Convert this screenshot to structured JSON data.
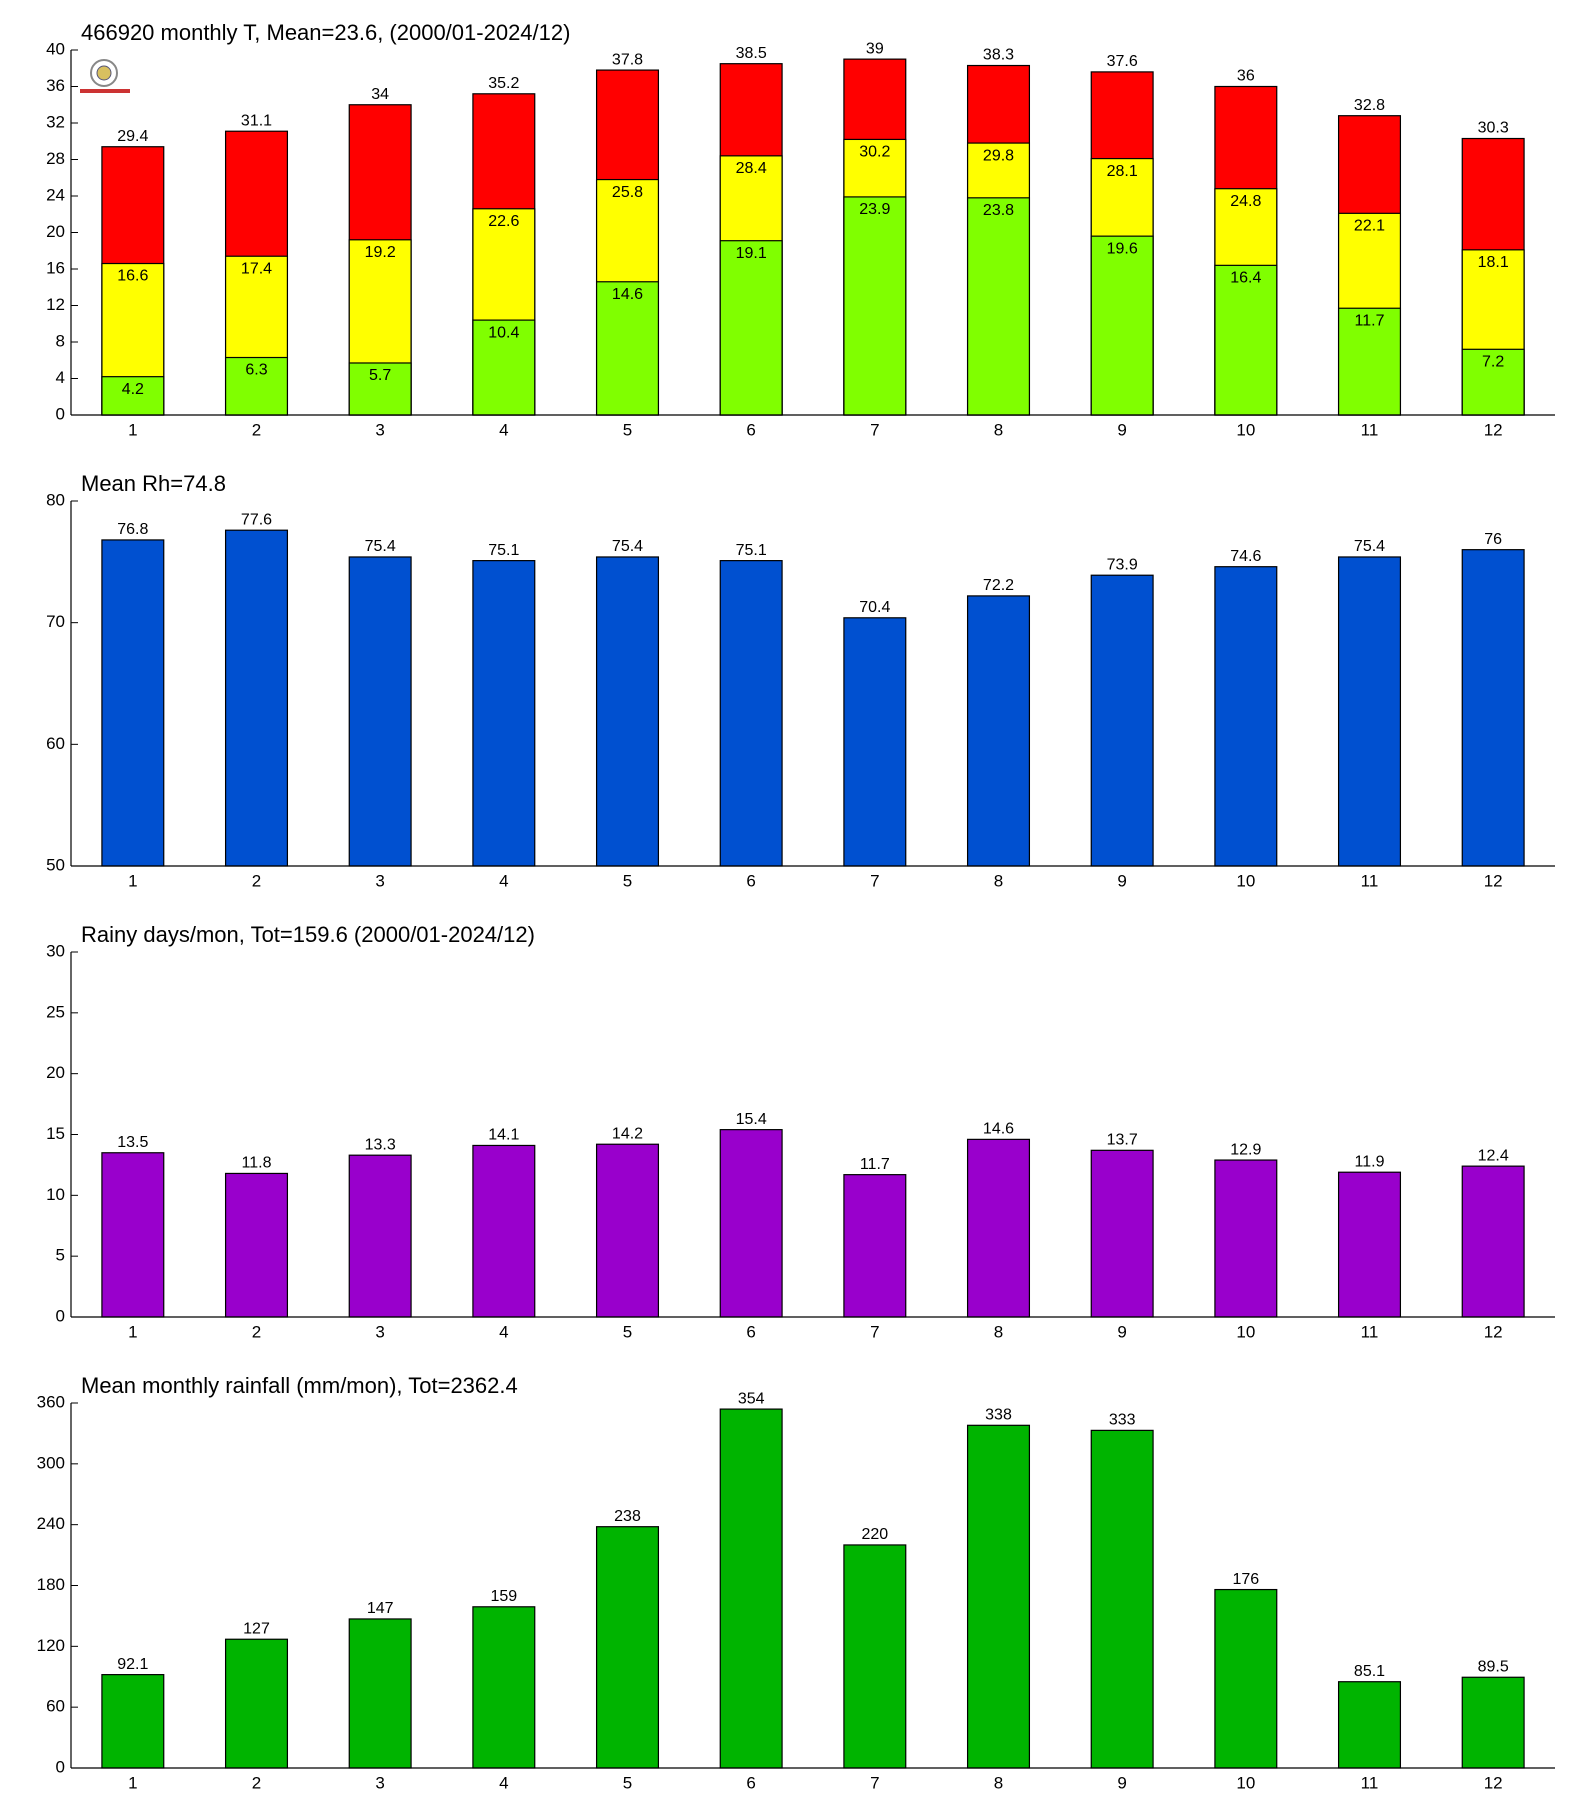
{
  "chart_data": [
    {
      "type": "bar",
      "title": "466920 monthly T, Mean=23.6, (2000/01-2024/12)",
      "categories": [
        "1",
        "2",
        "3",
        "4",
        "5",
        "6",
        "7",
        "8",
        "9",
        "10",
        "11",
        "12"
      ],
      "series": [
        {
          "color": "#80ff00",
          "values": [
            4.2,
            6.3,
            5.7,
            10.4,
            14.6,
            19.1,
            23.9,
            23.8,
            19.6,
            16.4,
            11.7,
            7.2
          ]
        },
        {
          "color": "#ffff00",
          "values": [
            16.6,
            17.4,
            19.2,
            22.6,
            25.8,
            28.4,
            30.2,
            29.8,
            28.1,
            24.8,
            22.1,
            18.1
          ]
        },
        {
          "color": "#ff0000",
          "values": [
            29.4,
            31.1,
            34,
            35.2,
            37.8,
            38.5,
            39,
            38.3,
            37.6,
            36,
            32.8,
            30.3
          ]
        }
      ],
      "ylim": [
        0,
        40
      ],
      "yticks": [
        0,
        4,
        8,
        12,
        16,
        20,
        24,
        28,
        32,
        36,
        40
      ]
    },
    {
      "type": "bar",
      "title": "Mean Rh=74.8",
      "categories": [
        "1",
        "2",
        "3",
        "4",
        "5",
        "6",
        "7",
        "8",
        "9",
        "10",
        "11",
        "12"
      ],
      "values": [
        76.8,
        77.6,
        75.4,
        75.1,
        75.4,
        75.1,
        70.4,
        72.2,
        73.9,
        74.6,
        75.4,
        76
      ],
      "color": "#0050d0",
      "ylim": [
        50,
        80
      ],
      "yticks": [
        50,
        60,
        70,
        80
      ]
    },
    {
      "type": "bar",
      "title": "Rainy days/mon, Tot=159.6 (2000/01-2024/12)",
      "categories": [
        "1",
        "2",
        "3",
        "4",
        "5",
        "6",
        "7",
        "8",
        "9",
        "10",
        "11",
        "12"
      ],
      "values": [
        13.5,
        11.8,
        13.3,
        14.1,
        14.2,
        15.4,
        11.7,
        14.6,
        13.7,
        12.9,
        11.9,
        12.4
      ],
      "color": "#9900cc",
      "ylim": [
        0,
        30
      ],
      "yticks": [
        0,
        5,
        10,
        15,
        20,
        25,
        30
      ]
    },
    {
      "type": "bar",
      "title": "Mean monthly rainfall (mm/mon), Tot=2362.4",
      "categories": [
        "1",
        "2",
        "3",
        "4",
        "5",
        "6",
        "7",
        "8",
        "9",
        "10",
        "11",
        "12"
      ],
      "values": [
        92.1,
        127,
        147,
        159,
        238,
        354,
        220,
        338,
        333,
        176,
        85.1,
        89.5
      ],
      "color": "#00b400",
      "ylim": [
        0,
        360
      ],
      "yticks": [
        0,
        60,
        120,
        180,
        240,
        300,
        360
      ]
    }
  ]
}
